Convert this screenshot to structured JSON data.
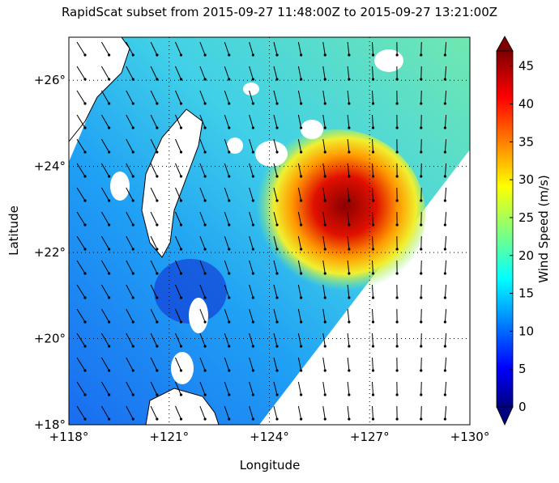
{
  "chart_data": {
    "type": "map",
    "title": "RapidScat subset from 2015-09-27 11:48:00Z to 2015-09-27 13:21:00Z",
    "xlabel": "Longitude",
    "ylabel": "Latitude",
    "xlim": [
      118,
      130
    ],
    "ylim": [
      18,
      27
    ],
    "xticks": [
      {
        "value": 118,
        "label": "+118°"
      },
      {
        "value": 121,
        "label": "+121°"
      },
      {
        "value": 124,
        "label": "+124°"
      },
      {
        "value": 127,
        "label": "+127°"
      },
      {
        "value": 130,
        "label": "+130°"
      }
    ],
    "yticks": [
      {
        "value": 18,
        "label": "+18°"
      },
      {
        "value": 20,
        "label": "+20°"
      },
      {
        "value": 22,
        "label": "+22°"
      },
      {
        "value": 24,
        "label": "+24°"
      },
      {
        "value": 26,
        "label": "+26°"
      }
    ],
    "grid": true,
    "colorbar": {
      "label": "Wind Speed (m/s)",
      "clim": [
        0,
        47
      ],
      "ticks": [
        0,
        5,
        10,
        15,
        20,
        25,
        30,
        35,
        40,
        45
      ]
    }
  }
}
